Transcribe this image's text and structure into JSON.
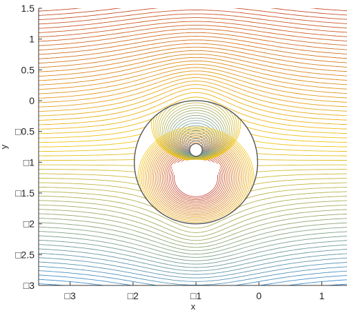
{
  "chart_data": {
    "type": "line",
    "title": "",
    "xlabel": "x",
    "ylabel": "y",
    "xlim": [
      -3.5,
      1.4
    ],
    "ylim": [
      -3,
      1.5
    ],
    "grid": false,
    "x_ticks": [
      {
        "value": -3,
        "label": "□3"
      },
      {
        "value": -2,
        "label": "□2"
      },
      {
        "value": -1,
        "label": "□1"
      },
      {
        "value": 0,
        "label": "0"
      },
      {
        "value": 1,
        "label": "1"
      }
    ],
    "y_ticks": [
      {
        "value": 1.5,
        "label": "1.5"
      },
      {
        "value": 1,
        "label": "1"
      },
      {
        "value": 0.5,
        "label": "0.5"
      },
      {
        "value": 0,
        "label": "0"
      },
      {
        "value": -0.5,
        "label": "□0.5"
      },
      {
        "value": -1,
        "label": "□1"
      },
      {
        "value": -1.5,
        "label": "□1.5"
      },
      {
        "value": -2,
        "label": "□2"
      },
      {
        "value": -2.5,
        "label": "□2.5"
      },
      {
        "value": -3,
        "label": "□3"
      }
    ],
    "circle": {
      "center": [
        -1,
        -1
      ],
      "radius": 1
    },
    "source_center": [
      -1,
      -0.8
    ],
    "sink_center": [
      -1,
      -1.25
    ],
    "colors": {
      "top": "#c0392b",
      "mid": "#f1c40f",
      "bottom": "#2e86de",
      "circle": "#555555"
    }
  }
}
